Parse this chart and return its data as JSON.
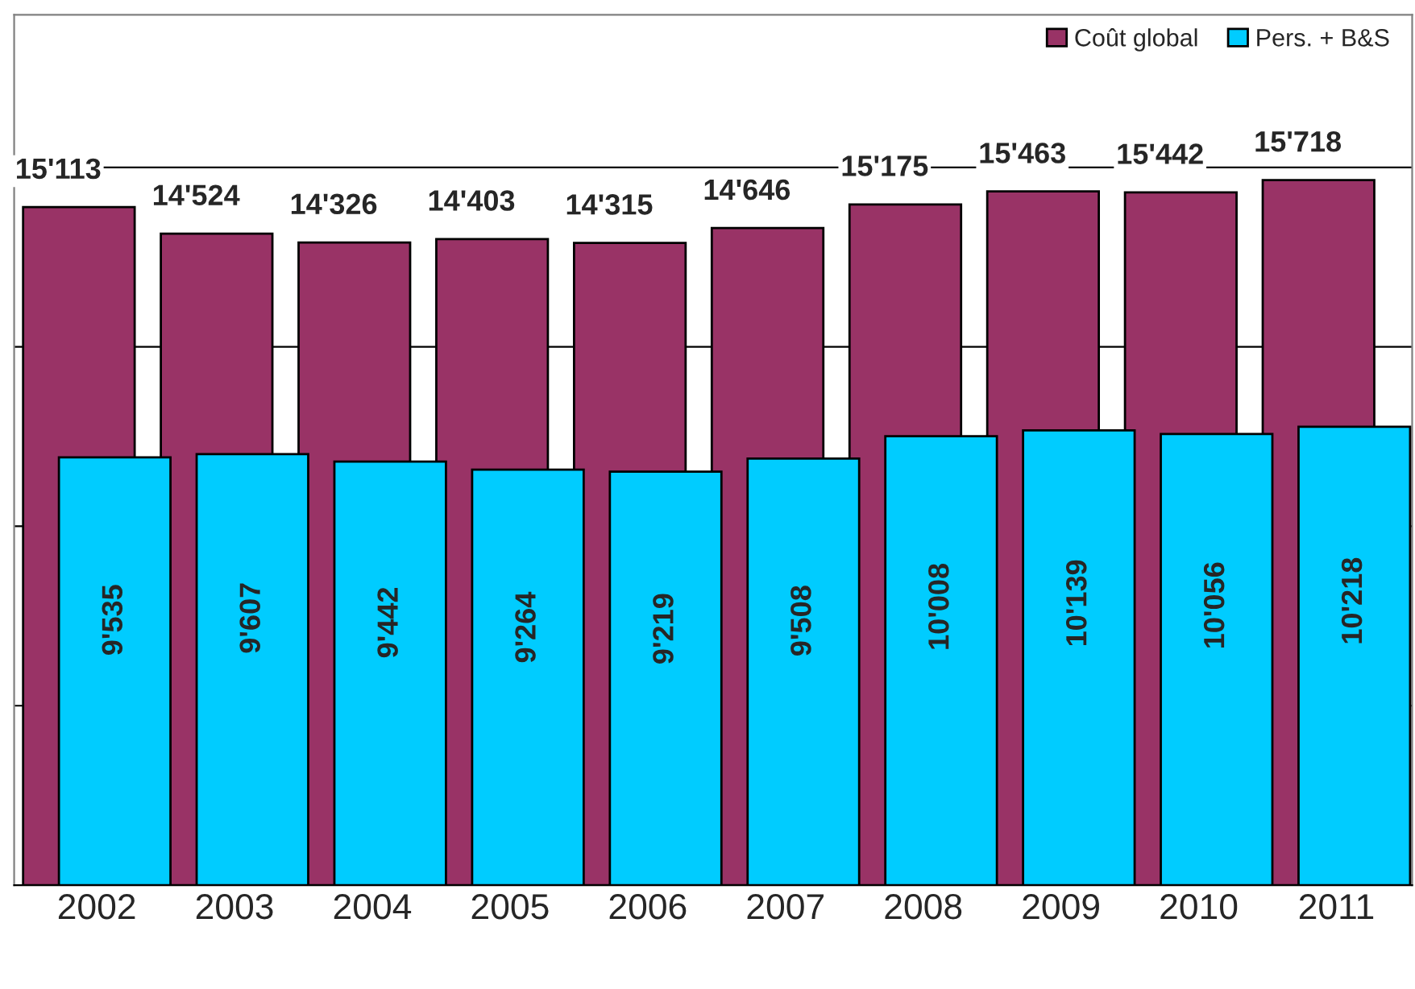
{
  "chart_data": {
    "type": "bar",
    "categories": [
      "2002",
      "2003",
      "2004",
      "2005",
      "2006",
      "2007",
      "2008",
      "2009",
      "2010",
      "2011"
    ],
    "series": [
      {
        "name": "Coût global",
        "color": "#993366",
        "values": [
          15113,
          14524,
          14326,
          14403,
          14315,
          14646,
          15175,
          15463,
          15442,
          15718
        ],
        "value_labels": [
          "15'113",
          "14'524",
          "14'326",
          "14'403",
          "14'315",
          "14'646",
          "15'175",
          "15'463",
          "15'442",
          "15'718"
        ]
      },
      {
        "name": "Pers. + B&S",
        "color": "#00ccff",
        "values": [
          9535,
          9607,
          9442,
          9264,
          9219,
          9508,
          10008,
          10139,
          10056,
          10218
        ],
        "value_labels": [
          "9'535",
          "9'607",
          "9'442",
          "9'264",
          "9'219",
          "9'508",
          "10'008",
          "10'139",
          "10'056",
          "10'218"
        ]
      }
    ],
    "ylim": [
      0,
      19400
    ],
    "yticks": [
      {
        "value": 0,
        "label": null
      },
      {
        "value": 4000,
        "label": null
      },
      {
        "value": 8000,
        "label": null
      },
      {
        "value": 12000,
        "label": null
      },
      {
        "value": 16000,
        "label": null
      }
    ],
    "grid": "y",
    "legend": "top right",
    "tick_labels": "x"
  }
}
